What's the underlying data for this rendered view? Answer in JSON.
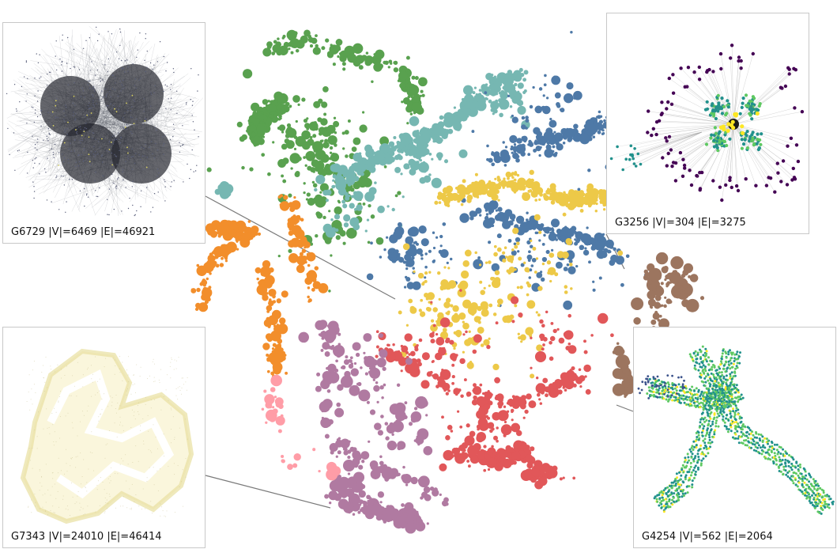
{
  "chart_data": {
    "type": "scatter",
    "title": "",
    "xlabel": "",
    "ylabel": "",
    "grid": false,
    "legend": "none",
    "description_of_axes": "2-D embedding projection without printed axes",
    "clusters": [
      {
        "color": "#59a14f"
      },
      {
        "color": "#76b7b2"
      },
      {
        "color": "#4e79a7"
      },
      {
        "color": "#edc948"
      },
      {
        "color": "#f28e2b"
      },
      {
        "color": "#e15759"
      },
      {
        "color": "#b07aa1"
      },
      {
        "color": "#9c755f"
      },
      {
        "color": "#ff9da7"
      }
    ]
  },
  "insets": [
    {
      "id": "g6729",
      "caption": "G6729 |V|=6469 |E|=46921",
      "style": "dense-gray-hairball",
      "node_color": "#3a3d4a"
    },
    {
      "id": "g3256",
      "caption": "G3256 |V|=304 |E|=3275",
      "style": "radial-clusters",
      "node_colors": [
        "#440154",
        "#21918c",
        "#5ec962",
        "#fde725"
      ]
    },
    {
      "id": "g7343",
      "caption": "G7343 |V|=24010 |E|=46414",
      "style": "pale-mesh",
      "node_color": "#e8e0a0"
    },
    {
      "id": "g4254",
      "caption": "G4254 |V|=562 |E|=2064",
      "style": "branching-lattice",
      "node_colors": [
        "#21918c",
        "#5ec962",
        "#3b528b",
        "#fde725"
      ]
    }
  ]
}
